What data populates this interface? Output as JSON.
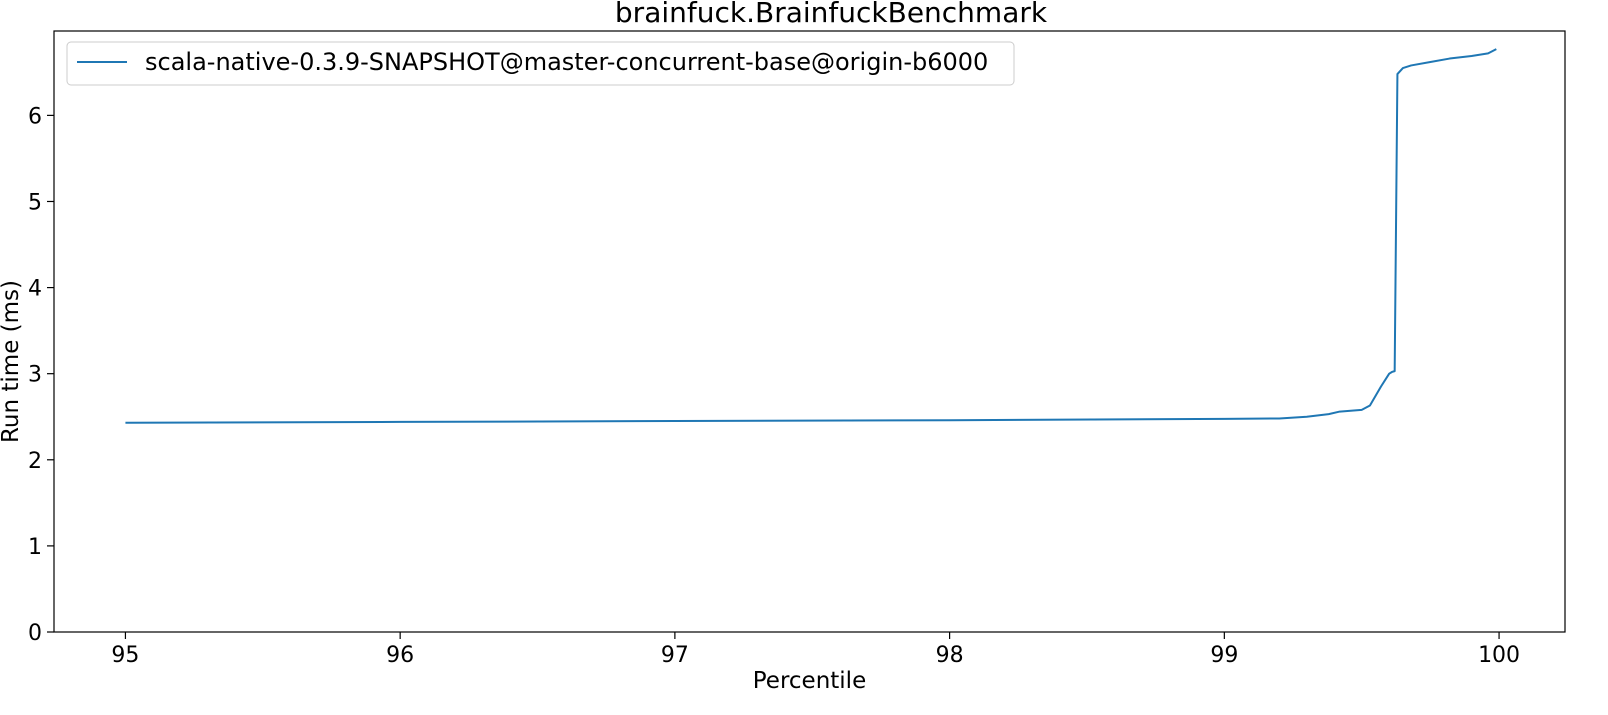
{
  "chart_data": {
    "type": "line",
    "title": "brainfuck.BrainfuckBenchmark",
    "xlabel": "Percentile",
    "ylabel": "Run time (ms)",
    "xlim": [
      94.74,
      100.24
    ],
    "ylim": [
      0,
      6.98
    ],
    "xticks": [
      95,
      96,
      97,
      98,
      99,
      100
    ],
    "yticks": [
      0,
      1,
      2,
      3,
      4,
      5,
      6
    ],
    "grid": false,
    "legend": {
      "position": "top-left"
    },
    "colors": {
      "series": "#1f77b4",
      "axes": "#000000",
      "background": "#ffffff"
    },
    "series": [
      {
        "name": "scala-native-0.3.9-SNAPSHOT@master-concurrent-base@origin-b6000",
        "x": [
          95.0,
          96.0,
          97.0,
          98.0,
          99.0,
          99.2,
          99.3,
          99.38,
          99.42,
          99.5,
          99.53,
          99.57,
          99.6,
          99.61,
          99.62,
          99.63,
          99.65,
          99.68,
          99.75,
          99.82,
          99.9,
          99.96,
          99.99
        ],
        "y": [
          2.43,
          2.44,
          2.45,
          2.46,
          2.475,
          2.48,
          2.5,
          2.53,
          2.56,
          2.58,
          2.63,
          2.85,
          3.0,
          3.02,
          3.03,
          6.48,
          6.55,
          6.58,
          6.62,
          6.66,
          6.69,
          6.72,
          6.77
        ]
      }
    ]
  }
}
